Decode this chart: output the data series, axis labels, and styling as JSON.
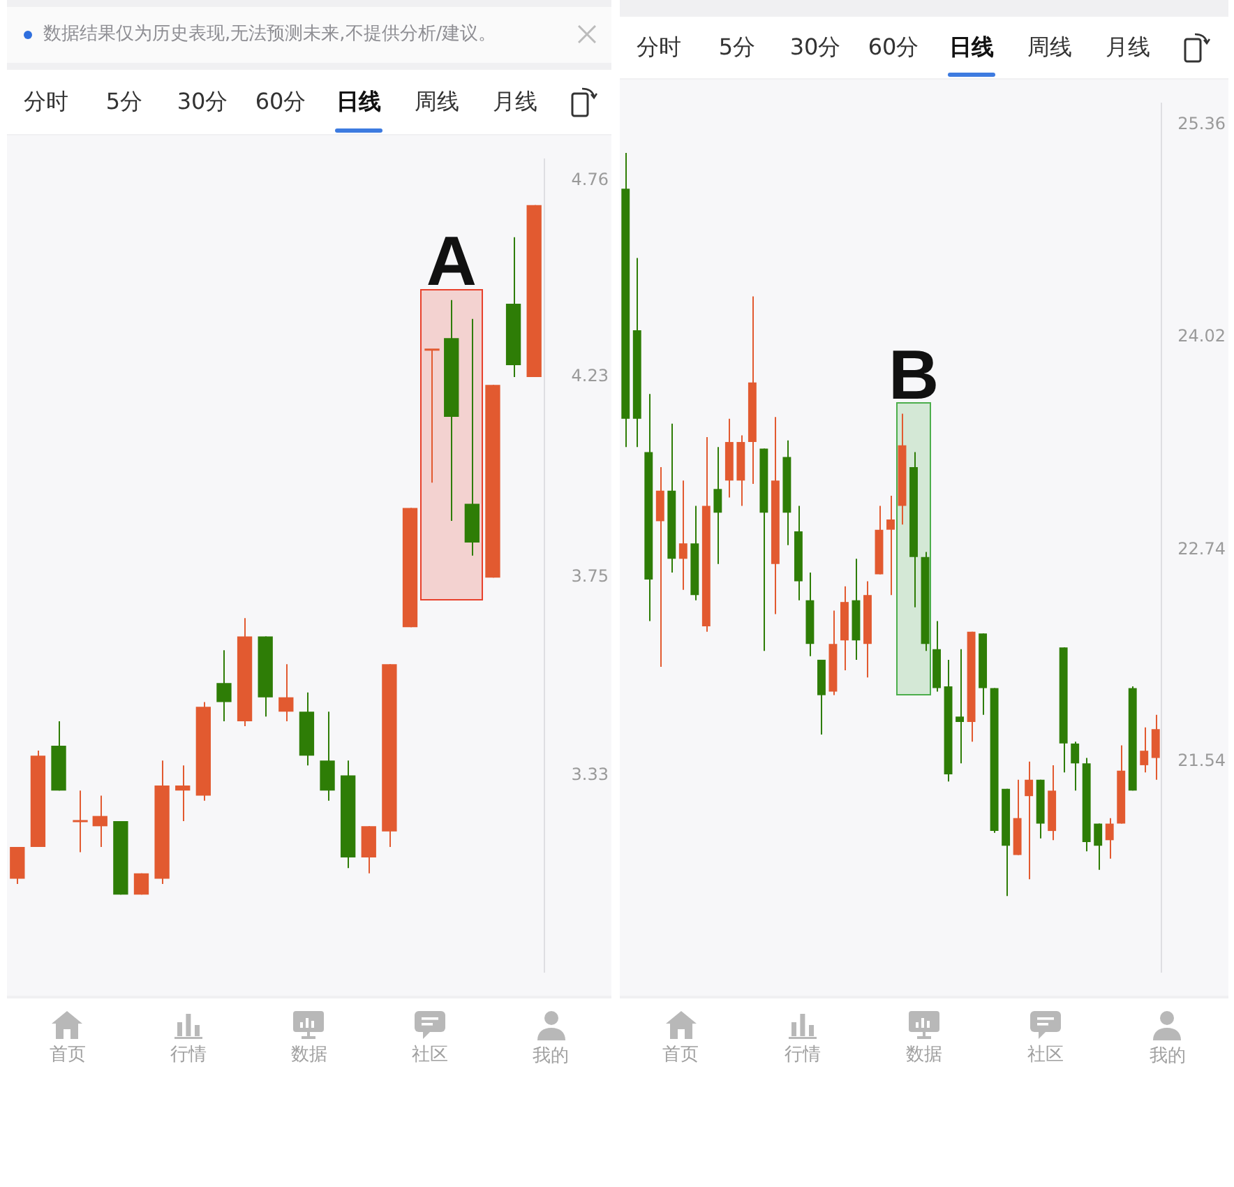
{
  "chart_data": [
    {
      "type": "candlestick",
      "subtitle": "数据结果仅为历史表现,无法预测未来,不提供分析/建议。",
      "categories": [
        null,
        null,
        null,
        null,
        null,
        null,
        null,
        null,
        null,
        null,
        null,
        null,
        null,
        null,
        null,
        null,
        null,
        null,
        null,
        null,
        null,
        null,
        null,
        null,
        null,
        null
      ],
      "ohlc": [
        [
          3.13,
          3.19,
          3.12,
          3.19
        ],
        [
          3.19,
          3.38,
          3.19,
          3.37
        ],
        [
          3.39,
          3.44,
          3.3,
          3.3
        ],
        [
          3.24,
          3.3,
          3.18,
          3.24
        ],
        [
          3.23,
          3.29,
          3.19,
          3.25
        ],
        [
          3.24,
          3.24,
          3.1,
          3.1
        ],
        [
          3.1,
          3.14,
          3.1,
          3.14
        ],
        [
          3.13,
          3.36,
          3.12,
          3.31
        ],
        [
          3.3,
          3.35,
          3.24,
          3.31
        ],
        [
          3.29,
          3.48,
          3.28,
          3.47
        ],
        [
          3.52,
          3.59,
          3.44,
          3.48
        ],
        [
          3.44,
          3.66,
          3.43,
          3.62
        ],
        [
          3.62,
          3.62,
          3.45,
          3.49
        ],
        [
          3.46,
          3.56,
          3.44,
          3.49
        ],
        [
          3.46,
          3.5,
          3.35,
          3.37
        ],
        [
          3.36,
          3.46,
          3.28,
          3.3
        ],
        [
          3.33,
          3.36,
          3.15,
          3.17
        ],
        [
          3.17,
          3.23,
          3.14,
          3.23
        ],
        [
          3.22,
          3.56,
          3.19,
          3.56
        ],
        [
          3.64,
          3.91,
          3.64,
          3.91
        ],
        [
          4.3,
          4.3,
          3.97,
          4.3
        ],
        [
          4.33,
          4.43,
          3.88,
          4.13
        ],
        [
          3.92,
          4.38,
          3.8,
          3.83
        ],
        [
          3.75,
          4.21,
          3.75,
          4.21
        ],
        [
          4.42,
          4.6,
          4.23,
          4.26
        ],
        [
          4.23,
          4.69,
          4.23,
          4.69
        ]
      ],
      "colors": [
        "#e25a30",
        "#e25a30",
        "#2e7d06",
        "#e25a30",
        "#e25a30",
        "#2e7d06",
        "#e25a30",
        "#e25a30",
        "#e25a30",
        "#e25a30",
        "#2e7d06",
        "#e25a30",
        "#2e7d06",
        "#e25a30",
        "#2e7d06",
        "#2e7d06",
        "#2e7d06",
        "#e25a30",
        "#e25a30",
        "#e25a30",
        "#e25a30",
        "#2e7d06",
        "#2e7d06",
        "#e25a30",
        "#2e7d06",
        "#e25a30"
      ],
      "ylim": [
        2.96,
        4.82
      ],
      "yticks": [
        3.33,
        3.75,
        4.23,
        4.76
      ],
      "log": true,
      "tick_labels": "y",
      "annotations": [
        "分时",
        "5分",
        "30分",
        "60分",
        "日线",
        "周线",
        "月线",
        "首页",
        "行情",
        "数据",
        "社区",
        "我的",
        "A"
      ]
    },
    {
      "type": "candlestick",
      "categories": [
        null,
        null,
        null,
        null,
        null,
        null,
        null,
        null,
        null,
        null,
        null,
        null,
        null,
        null,
        null,
        null,
        null,
        null,
        null,
        null,
        null,
        null,
        null,
        null,
        null,
        null,
        null,
        null,
        null,
        null,
        null,
        null,
        null,
        null,
        null,
        null,
        null,
        null,
        null,
        null,
        null,
        null,
        null,
        null,
        null,
        null,
        null
      ],
      "ohlc": [
        [
          24.95,
          25.18,
          23.35,
          23.52
        ],
        [
          24.06,
          24.51,
          23.35,
          23.52
        ],
        [
          23.32,
          23.67,
          22.33,
          22.57
        ],
        [
          22.91,
          23.23,
          22.07,
          23.09
        ],
        [
          23.09,
          23.49,
          22.61,
          22.69
        ],
        [
          22.69,
          23.15,
          22.51,
          22.78
        ],
        [
          22.78,
          23.0,
          22.45,
          22.48
        ],
        [
          22.3,
          23.41,
          22.27,
          23.0
        ],
        [
          23.1,
          23.35,
          22.66,
          22.96
        ],
        [
          23.15,
          23.52,
          23.05,
          23.38
        ],
        [
          23.15,
          23.42,
          23.0,
          23.38
        ],
        [
          23.38,
          24.27,
          23.13,
          23.74
        ],
        [
          23.34,
          23.34,
          22.16,
          22.96
        ],
        [
          22.66,
          23.53,
          22.37,
          23.15
        ],
        [
          23.29,
          23.39,
          22.77,
          22.96
        ],
        [
          22.85,
          23.0,
          22.45,
          22.56
        ],
        [
          22.45,
          22.61,
          22.13,
          22.2
        ],
        [
          22.11,
          22.11,
          21.69,
          21.91
        ],
        [
          21.93,
          22.39,
          21.91,
          22.2
        ],
        [
          22.22,
          22.53,
          22.05,
          22.44
        ],
        [
          22.45,
          22.69,
          22.11,
          22.22
        ],
        [
          22.2,
          22.56,
          22.01,
          22.48
        ],
        [
          22.6,
          23.0,
          22.6,
          22.86
        ],
        [
          22.86,
          23.06,
          22.48,
          22.92
        ],
        [
          23.0,
          23.55,
          22.89,
          23.36
        ],
        [
          23.23,
          23.32,
          22.41,
          22.7
        ],
        [
          22.7,
          22.73,
          22.16,
          22.2
        ],
        [
          22.17,
          22.33,
          21.93,
          21.95
        ],
        [
          21.96,
          22.11,
          21.43,
          21.47
        ],
        [
          21.79,
          22.17,
          21.53,
          21.76
        ],
        [
          21.76,
          22.27,
          21.65,
          22.27
        ],
        [
          22.26,
          22.26,
          21.8,
          21.95
        ],
        [
          21.95,
          21.95,
          21.15,
          21.16
        ],
        [
          21.39,
          21.39,
          20.81,
          21.08
        ],
        [
          21.03,
          21.44,
          21.03,
          21.23
        ],
        [
          21.35,
          21.54,
          20.9,
          21.44
        ],
        [
          21.44,
          21.44,
          21.12,
          21.2
        ],
        [
          21.16,
          21.52,
          21.11,
          21.38
        ],
        [
          22.18,
          22.18,
          21.48,
          21.64
        ],
        [
          21.64,
          21.65,
          21.38,
          21.53
        ],
        [
          21.53,
          21.56,
          21.05,
          21.1
        ],
        [
          21.2,
          21.2,
          20.95,
          21.08
        ],
        [
          21.11,
          21.23,
          21.01,
          21.2
        ],
        [
          21.2,
          21.63,
          21.2,
          21.49
        ],
        [
          21.95,
          21.96,
          21.38,
          21.38
        ],
        [
          21.52,
          21.73,
          21.48,
          21.6
        ],
        [
          21.56,
          21.8,
          21.44,
          21.72
        ]
      ],
      "colors": [
        "#2e7d06",
        "#2e7d06",
        "#2e7d06",
        "#e25a30",
        "#2e7d06",
        "#e25a30",
        "#2e7d06",
        "#e25a30",
        "#2e7d06",
        "#e25a30",
        "#e25a30",
        "#e25a30",
        "#2e7d06",
        "#e25a30",
        "#2e7d06",
        "#2e7d06",
        "#2e7d06",
        "#2e7d06",
        "#e25a30",
        "#e25a30",
        "#2e7d06",
        "#e25a30",
        "#e25a30",
        "#e25a30",
        "#e25a30",
        "#2e7d06",
        "#2e7d06",
        "#2e7d06",
        "#2e7d06",
        "#2e7d06",
        "#e25a30",
        "#2e7d06",
        "#2e7d06",
        "#2e7d06",
        "#e25a30",
        "#e25a30",
        "#2e7d06",
        "#e25a30",
        "#2e7d06",
        "#2e7d06",
        "#2e7d06",
        "#2e7d06",
        "#e25a30",
        "#e25a30",
        "#2e7d06",
        "#e25a30",
        "#e25a30"
      ],
      "ylim": [
        20.41,
        25.5
      ],
      "yticks": [
        21.54,
        22.74,
        24.02,
        25.36
      ],
      "log": true,
      "tick_labels": "y",
      "annotations": [
        "分时",
        "5分",
        "30分",
        "60分",
        "日线",
        "周线",
        "月线",
        "首页",
        "行情",
        "数据",
        "社区",
        "我的",
        "B"
      ]
    }
  ]
}
